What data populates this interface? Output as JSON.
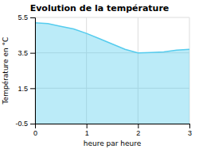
{
  "chart_data": {
    "type": "area",
    "title": "Evolution de la température",
    "xlabel": "heure par heure",
    "ylabel": "Température en °C",
    "x": [
      0,
      0.25,
      0.5,
      0.75,
      1.0,
      1.25,
      1.5,
      1.75,
      2.0,
      2.25,
      2.5,
      2.75,
      3.0
    ],
    "values": [
      5.2,
      5.15,
      5.0,
      4.85,
      4.6,
      4.3,
      4.0,
      3.7,
      3.5,
      3.52,
      3.55,
      3.65,
      3.7
    ],
    "color": "#55ccee",
    "xlim": [
      0,
      3
    ],
    "ylim": [
      -0.5,
      5.5
    ],
    "xticks": [
      0,
      1,
      2,
      3
    ],
    "yticks": [
      -0.5,
      1.5,
      3.5,
      5.5
    ],
    "grid": true
  }
}
